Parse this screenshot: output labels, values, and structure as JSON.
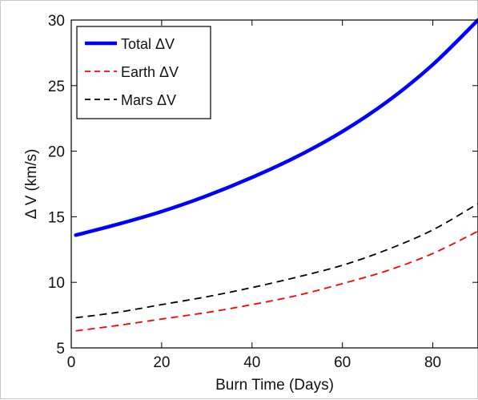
{
  "chart_data": {
    "type": "line",
    "xlabel": "Burn Time (Days)",
    "ylabel": "Δ V (km/s)",
    "xlim": [
      0,
      90
    ],
    "ylim": [
      5,
      30
    ],
    "xticks": [
      0,
      20,
      40,
      60,
      80
    ],
    "yticks": [
      5,
      10,
      15,
      20,
      25,
      30
    ],
    "grid": false,
    "legend_position": "top-left",
    "series": [
      {
        "name": "Total ΔV",
        "color": "#0000ff",
        "style": "solid",
        "x": [
          1,
          10,
          20,
          30,
          40,
          50,
          60,
          70,
          80,
          90
        ],
        "y": [
          13.6,
          14.4,
          15.4,
          16.6,
          18.0,
          19.6,
          21.5,
          23.8,
          26.6,
          30.0
        ]
      },
      {
        "name": "Earth ΔV",
        "color": "#ff0000",
        "style": "dashed",
        "x": [
          1,
          10,
          20,
          30,
          40,
          50,
          60,
          70,
          80,
          90
        ],
        "y": [
          6.3,
          6.7,
          7.2,
          7.7,
          8.3,
          9.0,
          9.9,
          10.9,
          12.2,
          13.9
        ]
      },
      {
        "name": "Mars ΔV",
        "color": "#000000",
        "style": "dashed",
        "x": [
          1,
          10,
          20,
          30,
          40,
          50,
          60,
          70,
          80,
          90
        ],
        "y": [
          7.3,
          7.7,
          8.3,
          8.9,
          9.6,
          10.4,
          11.3,
          12.5,
          14.0,
          16.0
        ]
      }
    ]
  }
}
